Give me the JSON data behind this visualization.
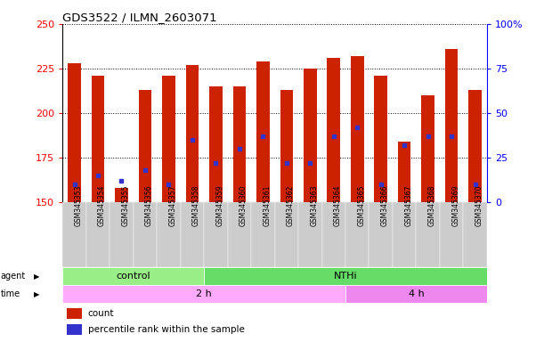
{
  "title": "GDS3522 / ILMN_2603071",
  "samples": [
    "GSM345353",
    "GSM345354",
    "GSM345355",
    "GSM345356",
    "GSM345357",
    "GSM345358",
    "GSM345359",
    "GSM345360",
    "GSM345361",
    "GSM345362",
    "GSM345363",
    "GSM345364",
    "GSM345365",
    "GSM345366",
    "GSM345367",
    "GSM345368",
    "GSM345369",
    "GSM345370"
  ],
  "counts": [
    228,
    221,
    158,
    213,
    221,
    227,
    215,
    215,
    229,
    213,
    225,
    231,
    232,
    221,
    184,
    210,
    236,
    213
  ],
  "percentile_ranks": [
    10,
    15,
    12,
    18,
    10,
    35,
    22,
    30,
    37,
    22,
    22,
    37,
    42,
    10,
    32,
    37,
    37,
    10
  ],
  "ymin": 150,
  "ymax": 250,
  "yticks": [
    150,
    175,
    200,
    225,
    250
  ],
  "right_yticks": [
    0,
    25,
    50,
    75,
    100
  ],
  "bar_color": "#CC2200",
  "marker_color": "#3333CC",
  "bg_color": "#FFFFFF",
  "plot_bg_color": "#FFFFFF",
  "agent_control_color": "#99EE88",
  "agent_nthi_color": "#66DD66",
  "time_2h_color": "#FFAAFF",
  "time_4h_color": "#EE88EE",
  "xtick_bg_color": "#DDDDDD",
  "legend_count_color": "#CC2200",
  "legend_pct_color": "#3333CC"
}
